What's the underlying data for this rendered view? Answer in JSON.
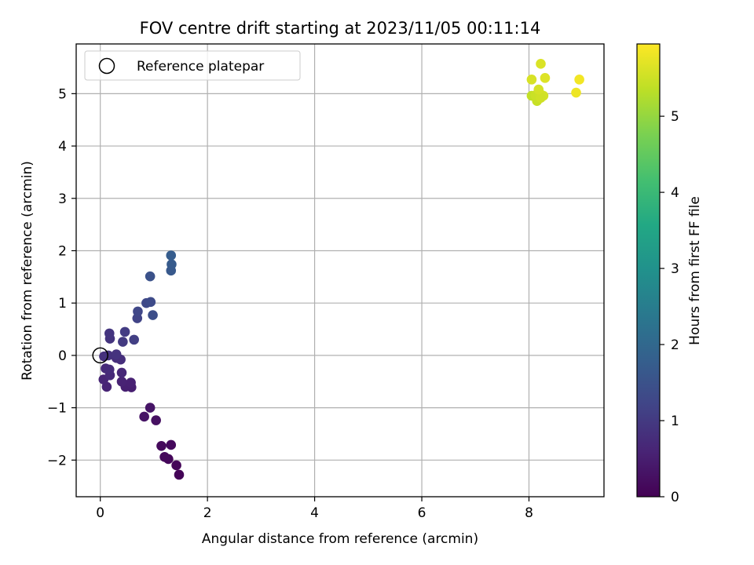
{
  "chart_data": {
    "type": "scatter",
    "title": "FOV centre drift starting at 2023/11/05 00:11:14",
    "xlabel": "Angular distance from reference (arcmin)",
    "ylabel": "Rotation from reference (arcmin)",
    "xlim": [
      -0.45,
      9.4
    ],
    "ylim": [
      -2.7,
      5.95
    ],
    "x_ticks": [
      0,
      2,
      4,
      6,
      8
    ],
    "y_ticks": [
      -2,
      -1,
      0,
      1,
      2,
      3,
      4,
      5
    ],
    "grid": true,
    "legend": {
      "location": "upper-left",
      "entries": [
        "Reference platepar"
      ]
    },
    "reference_point": {
      "x": 0,
      "y": 0,
      "label": "Reference platepar"
    },
    "colorbar": {
      "label": "Hours from first FF file",
      "range": [
        0,
        5.95
      ],
      "ticks": [
        0,
        1,
        2,
        3,
        4,
        5
      ],
      "colormap": "viridis"
    },
    "points": [
      {
        "x": 1.47,
        "y": -2.28,
        "c": 0.05
      },
      {
        "x": 1.42,
        "y": -2.1,
        "c": 0.07
      },
      {
        "x": 1.27,
        "y": -1.98,
        "c": 0.1
      },
      {
        "x": 1.2,
        "y": -1.94,
        "c": 0.12
      },
      {
        "x": 1.14,
        "y": -1.73,
        "c": 0.15
      },
      {
        "x": 1.32,
        "y": -1.71,
        "c": 0.14
      },
      {
        "x": 1.04,
        "y": -1.24,
        "c": 0.25
      },
      {
        "x": 0.82,
        "y": -1.17,
        "c": 0.3
      },
      {
        "x": 0.93,
        "y": -1.0,
        "c": 0.33
      },
      {
        "x": 0.58,
        "y": -0.61,
        "c": 0.5
      },
      {
        "x": 0.47,
        "y": -0.6,
        "c": 0.52
      },
      {
        "x": 0.57,
        "y": -0.52,
        "c": 0.55
      },
      {
        "x": 0.4,
        "y": -0.5,
        "c": 0.58
      },
      {
        "x": 0.12,
        "y": -0.6,
        "c": 0.6
      },
      {
        "x": 0.06,
        "y": -0.46,
        "c": 0.63
      },
      {
        "x": 0.4,
        "y": -0.33,
        "c": 0.66
      },
      {
        "x": 0.18,
        "y": -0.38,
        "c": 0.7
      },
      {
        "x": 0.1,
        "y": -0.25,
        "c": 0.72
      },
      {
        "x": 0.17,
        "y": -0.27,
        "c": 0.75
      },
      {
        "x": 0.38,
        "y": -0.08,
        "c": 0.78
      },
      {
        "x": 0.3,
        "y": -0.05,
        "c": 0.8
      },
      {
        "x": 0.07,
        "y": -0.02,
        "c": 0.82
      },
      {
        "x": 0.15,
        "y": 0.0,
        "c": 0.85
      },
      {
        "x": 0.3,
        "y": 0.02,
        "c": 0.88
      },
      {
        "x": 0.18,
        "y": 0.32,
        "c": 0.9
      },
      {
        "x": 0.17,
        "y": 0.42,
        "c": 0.92
      },
      {
        "x": 0.42,
        "y": 0.26,
        "c": 1.0
      },
      {
        "x": 0.46,
        "y": 0.45,
        "c": 1.05
      },
      {
        "x": 0.63,
        "y": 0.3,
        "c": 1.1
      },
      {
        "x": 0.69,
        "y": 0.71,
        "c": 1.2
      },
      {
        "x": 0.7,
        "y": 0.84,
        "c": 1.25
      },
      {
        "x": 0.86,
        "y": 1.0,
        "c": 1.3
      },
      {
        "x": 0.94,
        "y": 1.02,
        "c": 1.35
      },
      {
        "x": 0.98,
        "y": 0.77,
        "c": 1.4
      },
      {
        "x": 0.93,
        "y": 1.51,
        "c": 1.5
      },
      {
        "x": 1.32,
        "y": 1.62,
        "c": 1.65
      },
      {
        "x": 1.33,
        "y": 1.74,
        "c": 1.7
      },
      {
        "x": 1.32,
        "y": 1.91,
        "c": 1.75
      },
      {
        "x": 8.05,
        "y": 4.96,
        "c": 5.4
      },
      {
        "x": 8.15,
        "y": 4.86,
        "c": 5.45
      },
      {
        "x": 8.12,
        "y": 4.97,
        "c": 5.48
      },
      {
        "x": 8.2,
        "y": 5.01,
        "c": 5.5
      },
      {
        "x": 8.27,
        "y": 4.96,
        "c": 5.55
      },
      {
        "x": 8.22,
        "y": 4.92,
        "c": 5.52
      },
      {
        "x": 8.18,
        "y": 5.08,
        "c": 5.58
      },
      {
        "x": 8.05,
        "y": 5.27,
        "c": 5.6
      },
      {
        "x": 8.22,
        "y": 5.57,
        "c": 5.62
      },
      {
        "x": 8.3,
        "y": 5.3,
        "c": 5.65
      },
      {
        "x": 8.88,
        "y": 5.02,
        "c": 5.8
      },
      {
        "x": 8.94,
        "y": 5.27,
        "c": 5.85
      }
    ]
  }
}
